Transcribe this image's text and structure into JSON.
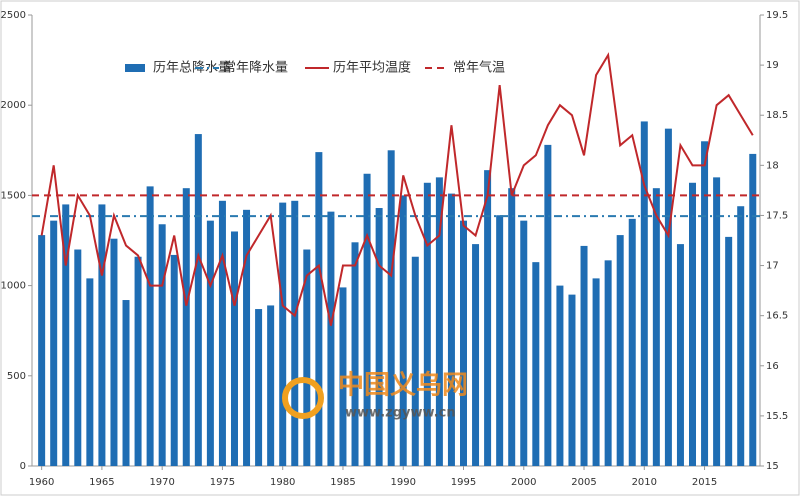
{
  "chart_data": {
    "type": "bar-line",
    "x": [
      1960,
      1961,
      1962,
      1963,
      1964,
      1965,
      1966,
      1967,
      1968,
      1969,
      1970,
      1971,
      1972,
      1973,
      1974,
      1975,
      1976,
      1977,
      1978,
      1979,
      1980,
      1981,
      1982,
      1983,
      1984,
      1985,
      1986,
      1987,
      1988,
      1989,
      1990,
      1991,
      1992,
      1993,
      1994,
      1995,
      1996,
      1997,
      1998,
      1999,
      2000,
      2001,
      2002,
      2003,
      2004,
      2005,
      2006,
      2007,
      2008,
      2009,
      2010,
      2011,
      2012,
      2013,
      2014,
      2015,
      2016,
      2017,
      2018,
      2019
    ],
    "xlim": [
      1959.2,
      2019.6
    ],
    "xticks": [
      1960,
      1965,
      1970,
      1975,
      1980,
      1985,
      1990,
      1995,
      2000,
      2005,
      2010,
      2015
    ],
    "ylim": [
      0,
      2500
    ],
    "yticks": [
      0,
      500,
      1000,
      1500,
      2000,
      2500
    ],
    "y2lim": [
      15,
      19.5
    ],
    "y2ticks": [
      15,
      15.5,
      16,
      16.5,
      17,
      17.5,
      18,
      18.5,
      19,
      19.5
    ],
    "series": [
      {
        "name": "历年总降水量",
        "kind": "bar",
        "color": "#1f6db3",
        "values": [
          1280,
          1360,
          1450,
          1200,
          1040,
          1450,
          1260,
          920,
          1160,
          1550,
          1340,
          1170,
          1540,
          1840,
          1360,
          1470,
          1300,
          1420,
          870,
          890,
          1460,
          1470,
          1200,
          1740,
          1410,
          990,
          1240,
          1620,
          1430,
          1750,
          1500,
          1160,
          1570,
          1600,
          1510,
          1360,
          1230,
          1640,
          1390,
          1540,
          1360,
          1130,
          1780,
          1000,
          950,
          1220,
          1040,
          1140,
          1280,
          1370,
          1910,
          1540,
          1870,
          1230,
          1570,
          1800,
          1600,
          1270,
          1440,
          1730
        ]
      },
      {
        "name": "常年降水量",
        "kind": "hline",
        "color": "#2a7ab0",
        "dash": "8 4 2 4",
        "value": 1385
      },
      {
        "name": "历年平均温度",
        "kind": "line",
        "axis": "y2",
        "color": "#c0282b",
        "values": [
          17.3,
          18.0,
          17.0,
          17.7,
          17.5,
          16.9,
          17.5,
          17.2,
          17.1,
          16.8,
          16.8,
          17.3,
          16.6,
          17.1,
          16.8,
          17.1,
          16.6,
          17.1,
          17.3,
          17.5,
          16.6,
          16.5,
          16.9,
          17.0,
          16.4,
          17.0,
          17.0,
          17.3,
          17.0,
          16.9,
          17.9,
          17.5,
          17.2,
          17.3,
          18.4,
          17.4,
          17.3,
          17.7,
          18.8,
          17.7,
          18.0,
          18.1,
          18.4,
          18.6,
          18.5,
          18.1,
          18.9,
          19.1,
          18.2,
          18.3,
          17.8,
          17.5,
          17.3,
          18.2,
          18.0,
          18.0,
          18.6,
          18.7,
          18.5,
          18.3
        ]
      },
      {
        "name": "常年气温",
        "kind": "hline",
        "axis": "y2",
        "color": "#c0282b",
        "dash": "7 5",
        "value": 17.7
      }
    ],
    "watermark": {
      "title": "中国义乌网",
      "url": "www.zgyww.cn"
    }
  }
}
